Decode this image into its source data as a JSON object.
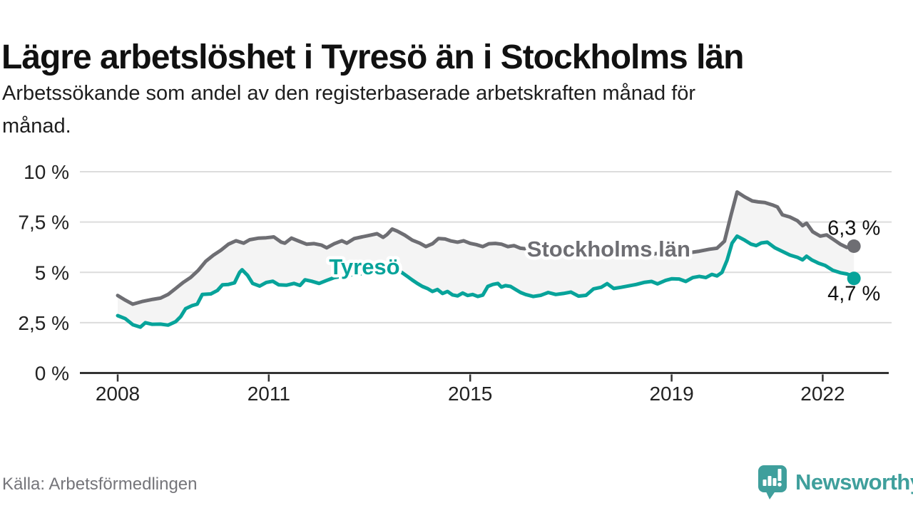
{
  "header": {
    "title": "Lägre arbetslöshet i Tyresö än i Stockholms län",
    "subtitle": "Arbetssökande som andel av den registerbaserade arbetskraften månad för månad.",
    "subtitle_lines": [
      "Arbetssökande som andel av den registerbaserade arbetskraften månad för",
      "månad."
    ]
  },
  "footer": {
    "source": "Källa: Arbetsförmedlingen",
    "brand": "Newsworthy"
  },
  "colors": {
    "tyreso": "#07a39a",
    "stockholm": "#6e6e73",
    "fill_between": "#f4f4f4",
    "gridline": "#dcdcdc",
    "axis": "#333333",
    "tick_text": "#222222",
    "value_text": "#111111",
    "title_text": "#111111",
    "muted_text": "#75757a",
    "brand_teal": "#3f9f9c",
    "halo": "#ffffff"
  },
  "chart_data": {
    "type": "line",
    "title": "Lägre arbetslöshet i Tyresö än i Stockholms län",
    "subtitle": "Arbetssökande som andel av den registerbaserade arbetskraften månad för månad.",
    "xlabel": "",
    "ylabel": "",
    "unit": "%",
    "xlim": [
      2007.25,
      2023.35
    ],
    "ylim": [
      0,
      10
    ],
    "grid": true,
    "legend_position": "inline-labels",
    "y_ticks": [
      {
        "value": 0,
        "label": "0 %"
      },
      {
        "value": 2.5,
        "label": "2,5 %"
      },
      {
        "value": 5,
        "label": "5 %"
      },
      {
        "value": 7.5,
        "label": "7,5 %"
      },
      {
        "value": 10,
        "label": "10 %"
      }
    ],
    "x_ticks": [
      {
        "value": 2008,
        "label": "2008"
      },
      {
        "value": 2011,
        "label": "2011"
      },
      {
        "value": 2015,
        "label": "2015"
      },
      {
        "value": 2019,
        "label": "2019"
      },
      {
        "value": 2022,
        "label": "2022"
      }
    ],
    "series": [
      {
        "id": "stockholm",
        "name": "Stockholms län",
        "color_key": "stockholm",
        "end_label": "6,3 %",
        "end_value": 6.3,
        "end_label_side": "above",
        "label_anchor": {
          "x": 2017.75,
          "y": 6.18
        },
        "points": [
          [
            2008.0,
            3.85
          ],
          [
            2008.15,
            3.62
          ],
          [
            2008.3,
            3.42
          ],
          [
            2008.5,
            3.56
          ],
          [
            2008.7,
            3.66
          ],
          [
            2008.85,
            3.72
          ],
          [
            2009.0,
            3.9
          ],
          [
            2009.15,
            4.2
          ],
          [
            2009.3,
            4.5
          ],
          [
            2009.45,
            4.75
          ],
          [
            2009.6,
            5.1
          ],
          [
            2009.75,
            5.55
          ],
          [
            2009.9,
            5.85
          ],
          [
            2010.05,
            6.1
          ],
          [
            2010.2,
            6.4
          ],
          [
            2010.35,
            6.57
          ],
          [
            2010.5,
            6.45
          ],
          [
            2010.62,
            6.62
          ],
          [
            2010.8,
            6.7
          ],
          [
            2010.95,
            6.72
          ],
          [
            2011.1,
            6.76
          ],
          [
            2011.25,
            6.5
          ],
          [
            2011.32,
            6.45
          ],
          [
            2011.45,
            6.7
          ],
          [
            2011.6,
            6.55
          ],
          [
            2011.75,
            6.4
          ],
          [
            2011.9,
            6.43
          ],
          [
            2012.05,
            6.35
          ],
          [
            2012.15,
            6.22
          ],
          [
            2012.3,
            6.42
          ],
          [
            2012.45,
            6.57
          ],
          [
            2012.55,
            6.45
          ],
          [
            2012.7,
            6.68
          ],
          [
            2012.85,
            6.76
          ],
          [
            2013.0,
            6.84
          ],
          [
            2013.15,
            6.92
          ],
          [
            2013.27,
            6.74
          ],
          [
            2013.35,
            6.88
          ],
          [
            2013.45,
            7.15
          ],
          [
            2013.55,
            7.05
          ],
          [
            2013.7,
            6.85
          ],
          [
            2013.85,
            6.6
          ],
          [
            2014.0,
            6.45
          ],
          [
            2014.12,
            6.28
          ],
          [
            2014.25,
            6.42
          ],
          [
            2014.37,
            6.68
          ],
          [
            2014.5,
            6.66
          ],
          [
            2014.62,
            6.56
          ],
          [
            2014.75,
            6.5
          ],
          [
            2014.87,
            6.57
          ],
          [
            2015.0,
            6.44
          ],
          [
            2015.12,
            6.38
          ],
          [
            2015.25,
            6.28
          ],
          [
            2015.37,
            6.42
          ],
          [
            2015.5,
            6.44
          ],
          [
            2015.62,
            6.4
          ],
          [
            2015.75,
            6.28
          ],
          [
            2015.87,
            6.33
          ],
          [
            2016.0,
            6.2
          ],
          [
            2016.15,
            6.16
          ],
          [
            2016.35,
            6.22
          ],
          [
            2016.55,
            6.25
          ],
          [
            2016.75,
            6.15
          ],
          [
            2016.95,
            6.1
          ],
          [
            2017.15,
            6.16
          ],
          [
            2017.35,
            6.1
          ],
          [
            2017.55,
            6.05
          ],
          [
            2017.75,
            6.0
          ],
          [
            2017.95,
            5.96
          ],
          [
            2018.15,
            6.03
          ],
          [
            2018.35,
            5.95
          ],
          [
            2018.55,
            5.88
          ],
          [
            2018.75,
            5.95
          ],
          [
            2018.95,
            6.0
          ],
          [
            2019.15,
            5.92
          ],
          [
            2019.35,
            5.98
          ],
          [
            2019.55,
            6.05
          ],
          [
            2019.75,
            6.15
          ],
          [
            2019.9,
            6.2
          ],
          [
            2020.05,
            6.55
          ],
          [
            2020.18,
            7.85
          ],
          [
            2020.3,
            8.99
          ],
          [
            2020.45,
            8.75
          ],
          [
            2020.6,
            8.55
          ],
          [
            2020.72,
            8.5
          ],
          [
            2020.85,
            8.47
          ],
          [
            2021.0,
            8.35
          ],
          [
            2021.1,
            8.25
          ],
          [
            2021.2,
            7.86
          ],
          [
            2021.35,
            7.75
          ],
          [
            2021.5,
            7.56
          ],
          [
            2021.6,
            7.32
          ],
          [
            2021.68,
            7.44
          ],
          [
            2021.8,
            7.02
          ],
          [
            2021.95,
            6.8
          ],
          [
            2022.08,
            6.86
          ],
          [
            2022.2,
            6.66
          ],
          [
            2022.35,
            6.4
          ],
          [
            2022.48,
            6.24
          ],
          [
            2022.56,
            6.26
          ],
          [
            2022.62,
            6.3
          ]
        ]
      },
      {
        "id": "tyreso",
        "name": "Tyresö",
        "color_key": "tyreso",
        "end_label": "4,7 %",
        "end_value": 4.7,
        "end_label_side": "below",
        "label_anchor": {
          "x": 2012.9,
          "y": 5.3
        },
        "points": [
          [
            2008.0,
            2.85
          ],
          [
            2008.15,
            2.7
          ],
          [
            2008.3,
            2.4
          ],
          [
            2008.45,
            2.28
          ],
          [
            2008.55,
            2.5
          ],
          [
            2008.68,
            2.42
          ],
          [
            2008.85,
            2.43
          ],
          [
            2009.0,
            2.38
          ],
          [
            2009.15,
            2.55
          ],
          [
            2009.25,
            2.8
          ],
          [
            2009.35,
            3.2
          ],
          [
            2009.48,
            3.35
          ],
          [
            2009.58,
            3.42
          ],
          [
            2009.68,
            3.9
          ],
          [
            2009.85,
            3.93
          ],
          [
            2009.98,
            4.1
          ],
          [
            2010.08,
            4.38
          ],
          [
            2010.2,
            4.4
          ],
          [
            2010.32,
            4.48
          ],
          [
            2010.42,
            5.0
          ],
          [
            2010.47,
            5.13
          ],
          [
            2010.58,
            4.85
          ],
          [
            2010.68,
            4.45
          ],
          [
            2010.82,
            4.32
          ],
          [
            2010.95,
            4.5
          ],
          [
            2011.08,
            4.56
          ],
          [
            2011.2,
            4.38
          ],
          [
            2011.35,
            4.36
          ],
          [
            2011.5,
            4.45
          ],
          [
            2011.62,
            4.35
          ],
          [
            2011.72,
            4.63
          ],
          [
            2011.85,
            4.56
          ],
          [
            2012.0,
            4.45
          ],
          [
            2012.15,
            4.6
          ],
          [
            2012.3,
            4.74
          ],
          [
            2012.5,
            4.82
          ],
          [
            2012.7,
            4.9
          ],
          [
            2012.9,
            4.95
          ],
          [
            2013.1,
            5.0
          ],
          [
            2013.3,
            5.05
          ],
          [
            2013.5,
            5.02
          ],
          [
            2013.64,
            5.0
          ],
          [
            2013.75,
            4.8
          ],
          [
            2013.85,
            4.62
          ],
          [
            2013.95,
            4.45
          ],
          [
            2014.05,
            4.3
          ],
          [
            2014.15,
            4.2
          ],
          [
            2014.25,
            4.05
          ],
          [
            2014.35,
            4.15
          ],
          [
            2014.45,
            3.95
          ],
          [
            2014.55,
            4.05
          ],
          [
            2014.65,
            3.88
          ],
          [
            2014.75,
            3.83
          ],
          [
            2014.85,
            3.97
          ],
          [
            2014.95,
            3.85
          ],
          [
            2015.05,
            3.9
          ],
          [
            2015.15,
            3.8
          ],
          [
            2015.25,
            3.87
          ],
          [
            2015.35,
            4.3
          ],
          [
            2015.45,
            4.4
          ],
          [
            2015.55,
            4.45
          ],
          [
            2015.62,
            4.27
          ],
          [
            2015.7,
            4.34
          ],
          [
            2015.8,
            4.3
          ],
          [
            2015.9,
            4.15
          ],
          [
            2016.0,
            4.0
          ],
          [
            2016.1,
            3.9
          ],
          [
            2016.25,
            3.8
          ],
          [
            2016.4,
            3.86
          ],
          [
            2016.55,
            4.0
          ],
          [
            2016.7,
            3.9
          ],
          [
            2016.85,
            3.95
          ],
          [
            2017.0,
            4.02
          ],
          [
            2017.15,
            3.82
          ],
          [
            2017.3,
            3.86
          ],
          [
            2017.45,
            4.18
          ],
          [
            2017.6,
            4.26
          ],
          [
            2017.72,
            4.44
          ],
          [
            2017.85,
            4.2
          ],
          [
            2018.0,
            4.26
          ],
          [
            2018.15,
            4.33
          ],
          [
            2018.3,
            4.4
          ],
          [
            2018.45,
            4.5
          ],
          [
            2018.6,
            4.55
          ],
          [
            2018.72,
            4.43
          ],
          [
            2018.88,
            4.6
          ],
          [
            2019.0,
            4.68
          ],
          [
            2019.15,
            4.67
          ],
          [
            2019.28,
            4.55
          ],
          [
            2019.42,
            4.74
          ],
          [
            2019.55,
            4.8
          ],
          [
            2019.68,
            4.74
          ],
          [
            2019.8,
            4.9
          ],
          [
            2019.9,
            4.82
          ],
          [
            2020.0,
            5.0
          ],
          [
            2020.1,
            5.6
          ],
          [
            2020.2,
            6.45
          ],
          [
            2020.3,
            6.8
          ],
          [
            2020.45,
            6.6
          ],
          [
            2020.58,
            6.4
          ],
          [
            2020.68,
            6.33
          ],
          [
            2020.78,
            6.46
          ],
          [
            2020.9,
            6.5
          ],
          [
            2021.05,
            6.22
          ],
          [
            2021.2,
            6.04
          ],
          [
            2021.35,
            5.86
          ],
          [
            2021.5,
            5.74
          ],
          [
            2021.6,
            5.62
          ],
          [
            2021.68,
            5.8
          ],
          [
            2021.78,
            5.62
          ],
          [
            2021.92,
            5.45
          ],
          [
            2022.05,
            5.34
          ],
          [
            2022.2,
            5.1
          ],
          [
            2022.35,
            4.98
          ],
          [
            2022.48,
            4.92
          ],
          [
            2022.56,
            4.85
          ],
          [
            2022.62,
            4.7
          ]
        ]
      }
    ]
  }
}
